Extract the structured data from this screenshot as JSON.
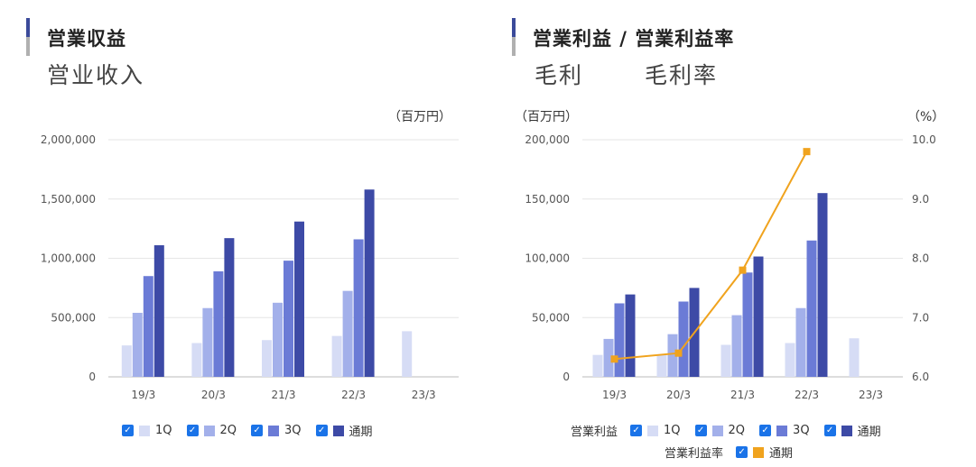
{
  "left": {
    "title": "営業収益",
    "subtitle": "営业收入",
    "unit": "（百万円）",
    "legend": [
      "1Q",
      "2Q",
      "3Q",
      "通期"
    ]
  },
  "right": {
    "title": "営業利益 / 営業利益率",
    "subtitle1": "毛利",
    "subtitle2": "毛利率",
    "unit_left": "（百万円）",
    "unit_right": "（%）",
    "legend_group1": "営業利益",
    "legend_group2": "営業利益率",
    "legend": [
      "1Q",
      "2Q",
      "3Q",
      "通期"
    ],
    "legend_rate": "通期"
  },
  "colors": {
    "1Q": "#d6dcf5",
    "2Q": "#a3b0ea",
    "3Q": "#6b7bd6",
    "通期": "#3d4aa6",
    "rate": "#f0a31e",
    "check": "#1a73e8"
  },
  "chart_data": [
    {
      "type": "bar",
      "categories": [
        "19/3",
        "20/3",
        "21/3",
        "22/3",
        "23/3"
      ],
      "series": [
        {
          "name": "1Q",
          "values": [
            265000,
            285000,
            310000,
            345000,
            385000
          ]
        },
        {
          "name": "2Q",
          "values": [
            540000,
            580000,
            625000,
            725000,
            null
          ]
        },
        {
          "name": "3Q",
          "values": [
            850000,
            890000,
            980000,
            1160000,
            null
          ]
        },
        {
          "name": "通期",
          "values": [
            1110000,
            1170000,
            1310000,
            1580000,
            null
          ]
        }
      ],
      "ylim": [
        0,
        2000000
      ],
      "yticks": [
        "0",
        "500,000",
        "1,000,000",
        "1,500,000",
        "2,000,000"
      ],
      "ylabel": "（百万円）",
      "grid": true,
      "legend": "bottom"
    },
    {
      "type": "bar",
      "categories": [
        "19/3",
        "20/3",
        "21/3",
        "22/3",
        "23/3"
      ],
      "series": [
        {
          "name": "1Q",
          "values": [
            18500,
            19000,
            27000,
            28500,
            32500
          ]
        },
        {
          "name": "2Q",
          "values": [
            32000,
            36000,
            52000,
            58000,
            null
          ]
        },
        {
          "name": "3Q",
          "values": [
            62000,
            63500,
            88000,
            115000,
            null
          ]
        },
        {
          "name": "通期",
          "values": [
            69500,
            75000,
            101500,
            155000,
            null
          ]
        }
      ],
      "line_series": {
        "name": "通期",
        "axis": "right",
        "values": [
          6.3,
          6.4,
          7.8,
          9.8,
          null
        ]
      },
      "ylim": [
        0,
        200000
      ],
      "yticks": [
        "0",
        "50,000",
        "100,000",
        "150,000",
        "200,000"
      ],
      "y2lim": [
        6.0,
        10.0
      ],
      "y2ticks": [
        "6.0",
        "7.0",
        "8.0",
        "9.0",
        "10.0"
      ],
      "ylabel": "（百万円）",
      "y2label": "（%）",
      "grid": true,
      "legend": "bottom"
    }
  ]
}
